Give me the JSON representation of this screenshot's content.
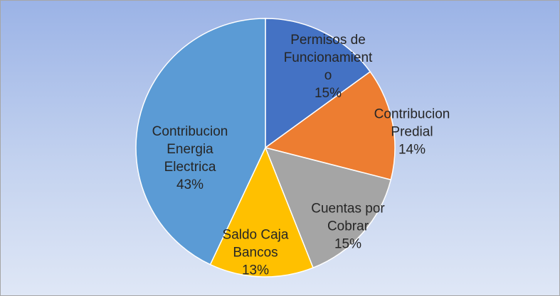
{
  "chart_data": {
    "type": "pie",
    "categories": [
      "Permisos de Funcionamiento",
      "Contribucion Predial",
      "Cuentas por Cobrar",
      "Saldo Caja Bancos",
      "Contribucion Energia Electrica"
    ],
    "values": [
      15,
      14,
      15,
      13,
      43
    ],
    "value_labels": [
      "15%",
      "14%",
      "15%",
      "13%",
      "43%"
    ],
    "colors": [
      "#4472c4",
      "#ed7d31",
      "#a5a5a5",
      "#ffc000",
      "#5b9bd5"
    ]
  }
}
